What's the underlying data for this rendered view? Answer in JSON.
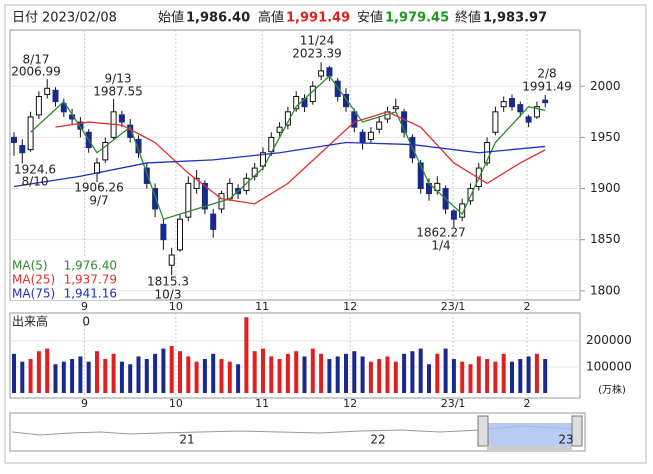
{
  "header": {
    "date_label": "日付",
    "date": "2023/02/08",
    "fields": [
      {
        "label": "始値",
        "value": "1,986.40"
      },
      {
        "label": "高値",
        "value": "1,991.49"
      },
      {
        "label": "安値",
        "value": "1,979.45"
      },
      {
        "label": "終値",
        "value": "1,983.97"
      }
    ]
  },
  "chart_data": {
    "type": "candlestick",
    "up_color": "#ffffff",
    "down_color": "#1a2a8c",
    "ylim": [
      1791,
      2055
    ],
    "yticks": [
      1800,
      1850,
      1900,
      1950,
      2000
    ],
    "xticks": [
      {
        "value": 8.5,
        "label": "9"
      },
      {
        "value": 19.5,
        "label": "10"
      },
      {
        "value": 29.9,
        "label": "11"
      },
      {
        "value": 40.5,
        "label": "12"
      },
      {
        "value": 52.9,
        "label": "23/1"
      },
      {
        "value": 61.8,
        "label": "2"
      }
    ],
    "candles": [
      [
        1950,
        1955,
        1932,
        1945
      ],
      [
        1942,
        1948,
        1924.6,
        1935
      ],
      [
        1938,
        1975,
        1936,
        1970
      ],
      [
        1972,
        1995,
        1968,
        1990
      ],
      [
        1992,
        2006.99,
        1988,
        1998
      ],
      [
        1996,
        1999,
        1980,
        1985
      ],
      [
        1983,
        1988,
        1970,
        1975
      ],
      [
        1972,
        1978,
        1962,
        1968
      ],
      [
        1965,
        1970,
        1950,
        1958
      ],
      [
        1955,
        1958,
        1935,
        1940
      ],
      [
        1915,
        1930,
        1906.26,
        1925
      ],
      [
        1928,
        1950,
        1925,
        1945
      ],
      [
        1950,
        1987.55,
        1948,
        1975
      ],
      [
        1972,
        1976,
        1960,
        1965
      ],
      [
        1962,
        1968,
        1945,
        1950
      ],
      [
        1948,
        1952,
        1930,
        1935
      ],
      [
        1920,
        1925,
        1900,
        1905
      ],
      [
        1900,
        1905,
        1872,
        1880
      ],
      [
        1865,
        1870,
        1840,
        1850
      ],
      [
        1825,
        1842,
        1815.3,
        1835
      ],
      [
        1840,
        1875,
        1838,
        1870
      ],
      [
        1872,
        1912,
        1868,
        1905
      ],
      [
        1900,
        1918,
        1895,
        1910
      ],
      [
        1905,
        1908,
        1875,
        1880
      ],
      [
        1875,
        1880,
        1852,
        1860
      ],
      [
        1880,
        1898,
        1876,
        1895
      ],
      [
        1890,
        1910,
        1888,
        1905
      ],
      [
        1900,
        1904,
        1890,
        1895
      ],
      [
        1898,
        1915,
        1894,
        1910
      ],
      [
        1912,
        1925,
        1908,
        1920
      ],
      [
        1922,
        1940,
        1918,
        1935
      ],
      [
        1936,
        1955,
        1932,
        1950
      ],
      [
        1955,
        1965,
        1950,
        1960
      ],
      [
        1962,
        1980,
        1958,
        1975
      ],
      [
        1978,
        1995,
        1975,
        1990
      ],
      [
        1988,
        1992,
        1975,
        1980
      ],
      [
        1985,
        2005,
        1982,
        2000
      ],
      [
        2010,
        2023.39,
        2006,
        2015
      ],
      [
        2018,
        2020,
        2005,
        2010
      ],
      [
        2005,
        2008,
        1985,
        1990
      ],
      [
        1992,
        1998,
        1975,
        1980
      ],
      [
        1975,
        1978,
        1955,
        1960
      ],
      [
        1955,
        1958,
        1938,
        1945
      ],
      [
        1948,
        1960,
        1944,
        1955
      ],
      [
        1958,
        1970,
        1954,
        1965
      ],
      [
        1968,
        1980,
        1964,
        1975
      ],
      [
        1978,
        1988,
        1974,
        1980
      ],
      [
        1975,
        1978,
        1950,
        1955
      ],
      [
        1950,
        1953,
        1925,
        1930
      ],
      [
        1925,
        1928,
        1895,
        1900
      ],
      [
        1905,
        1910,
        1888,
        1895
      ],
      [
        1898,
        1912,
        1894,
        1905
      ],
      [
        1900,
        1903,
        1875,
        1880
      ],
      [
        1878,
        1880,
        1862.27,
        1870
      ],
      [
        1872,
        1890,
        1868,
        1885
      ],
      [
        1888,
        1905,
        1884,
        1900
      ],
      [
        1902,
        1925,
        1898,
        1920
      ],
      [
        1925,
        1950,
        1922,
        1945
      ],
      [
        1955,
        1980,
        1952,
        1975
      ],
      [
        1980,
        1990,
        1975,
        1985
      ],
      [
        1988,
        1992,
        1976,
        1980
      ],
      [
        1982,
        1985,
        1970,
        1975
      ],
      [
        1970,
        1972,
        1960,
        1965
      ],
      [
        1970,
        1985,
        1968,
        1980
      ],
      [
        1986.4,
        1991.49,
        1979.45,
        1983.97
      ]
    ],
    "series": [
      {
        "name": "MA(5)",
        "color": "#2e8b2e",
        "last_label": "1,976.40",
        "x": [
          2,
          6,
          10,
          14,
          18,
          22,
          26,
          30,
          34,
          38,
          42,
          46,
          50,
          54,
          58,
          62,
          64
        ],
        "values": [
          1955,
          1985,
          1935,
          1960,
          1870,
          1880,
          1890,
          1920,
          1980,
          2010,
          1965,
          1975,
          1905,
          1875,
          1945,
          1980,
          1976.4
        ]
      },
      {
        "name": "MA(25)",
        "color": "#e03030",
        "last_label": "1,937.79",
        "x": [
          5,
          9,
          13,
          17,
          21,
          25,
          29,
          33,
          37,
          41,
          45,
          49,
          53,
          57,
          61,
          64
        ],
        "values": [
          1960,
          1965,
          1962,
          1945,
          1915,
          1890,
          1885,
          1905,
          1935,
          1965,
          1975,
          1960,
          1925,
          1905,
          1925,
          1937.79
        ]
      },
      {
        "name": "MA(75)",
        "color": "#2030c0",
        "last_label": "1,941.16",
        "x": [
          0,
          8,
          16,
          24,
          32,
          40,
          48,
          56,
          64
        ],
        "values": [
          1902,
          1912,
          1925,
          1928,
          1935,
          1945,
          1943,
          1935,
          1941.16
        ]
      }
    ],
    "annotations": [
      {
        "date": "8/17",
        "price": 2006.99
      },
      {
        "date": "9/13",
        "price": 1987.55
      },
      {
        "date": "11/24",
        "price": 2023.39
      },
      {
        "date": "2/8",
        "price": 1991.49
      },
      {
        "date": "8/10",
        "price": 1924.6
      },
      {
        "date": "9/7",
        "price": 1906.26
      },
      {
        "date": "1/4",
        "price": 1862.27
      },
      {
        "date": "10/3",
        "price": 1815.3
      }
    ],
    "volume": {
      "label": "出来高",
      "current": 0,
      "unit": "(万株)",
      "up_color": "#e02020",
      "down_color": "#1a2a8c",
      "ylim": [
        0,
        310000
      ],
      "yticks": [
        100000,
        200000
      ],
      "values": [
        150000,
        120000,
        130000,
        160000,
        170000,
        110000,
        120000,
        130000,
        140000,
        120000,
        160000,
        130000,
        150000,
        120000,
        110000,
        140000,
        130000,
        150000,
        170000,
        180000,
        160000,
        140000,
        120000,
        130000,
        150000,
        130000,
        120000,
        110000,
        290000,
        160000,
        170000,
        140000,
        130000,
        150000,
        160000,
        140000,
        170000,
        150000,
        130000,
        140000,
        150000,
        160000,
        140000,
        120000,
        130000,
        140000,
        120000,
        150000,
        160000,
        170000,
        110000,
        150000,
        170000,
        130000,
        120000,
        110000,
        140000,
        130000,
        120000,
        150000,
        120000,
        130000,
        140000,
        150000,
        130000
      ]
    }
  },
  "navigator": {
    "labels": [
      "21",
      "22",
      "23"
    ]
  }
}
